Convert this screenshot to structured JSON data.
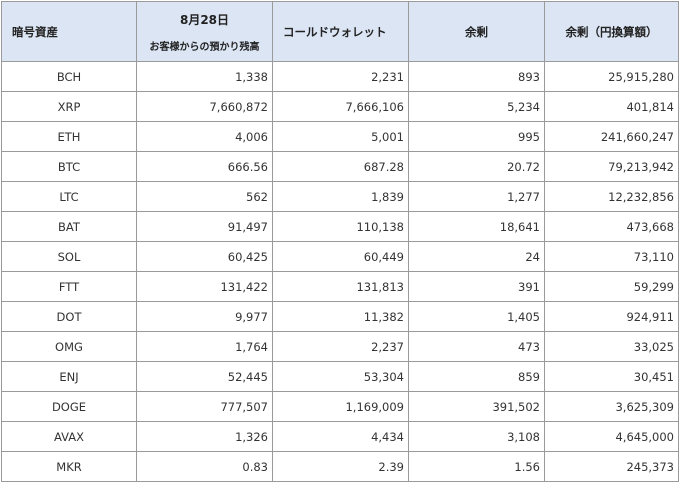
{
  "header": {
    "asset": "暗号資産",
    "customer_date": "8月28日",
    "customer_label": "お客様からの預かり残高",
    "cold_wallet": "コールドウォレット",
    "surplus": "余剰",
    "surplus_jpy": "余剰（円換算額）"
  },
  "rows": [
    {
      "asset": "BCH",
      "customer": "1,338",
      "cold": "2,231",
      "surplus": "893",
      "jpy": "25,915,280"
    },
    {
      "asset": "XRP",
      "customer": "7,660,872",
      "cold": "7,666,106",
      "surplus": "5,234",
      "jpy": "401,814"
    },
    {
      "asset": "ETH",
      "customer": "4,006",
      "cold": "5,001",
      "surplus": "995",
      "jpy": "241,660,247"
    },
    {
      "asset": "BTC",
      "customer": "666.56",
      "cold": "687.28",
      "surplus": "20.72",
      "jpy": "79,213,942"
    },
    {
      "asset": "LTC",
      "customer": "562",
      "cold": "1,839",
      "surplus": "1,277",
      "jpy": "12,232,856"
    },
    {
      "asset": "BAT",
      "customer": "91,497",
      "cold": "110,138",
      "surplus": "18,641",
      "jpy": "473,668"
    },
    {
      "asset": "SOL",
      "customer": "60,425",
      "cold": "60,449",
      "surplus": "24",
      "jpy": "73,110"
    },
    {
      "asset": "FTT",
      "customer": "131,422",
      "cold": "131,813",
      "surplus": "391",
      "jpy": "59,299"
    },
    {
      "asset": "DOT",
      "customer": "9,977",
      "cold": "11,382",
      "surplus": "1,405",
      "jpy": "924,911"
    },
    {
      "asset": "OMG",
      "customer": "1,764",
      "cold": "2,237",
      "surplus": "473",
      "jpy": "33,025"
    },
    {
      "asset": "ENJ",
      "customer": "52,445",
      "cold": "53,304",
      "surplus": "859",
      "jpy": "30,451"
    },
    {
      "asset": "DOGE",
      "customer": "777,507",
      "cold": "1,169,009",
      "surplus": "391,502",
      "jpy": "3,625,309"
    },
    {
      "asset": "AVAX",
      "customer": "1,326",
      "cold": "4,434",
      "surplus": "3,108",
      "jpy": "4,645,000"
    },
    {
      "asset": "MKR",
      "customer": "0.83",
      "cold": "2.39",
      "surplus": "1.56",
      "jpy": "245,373"
    }
  ]
}
